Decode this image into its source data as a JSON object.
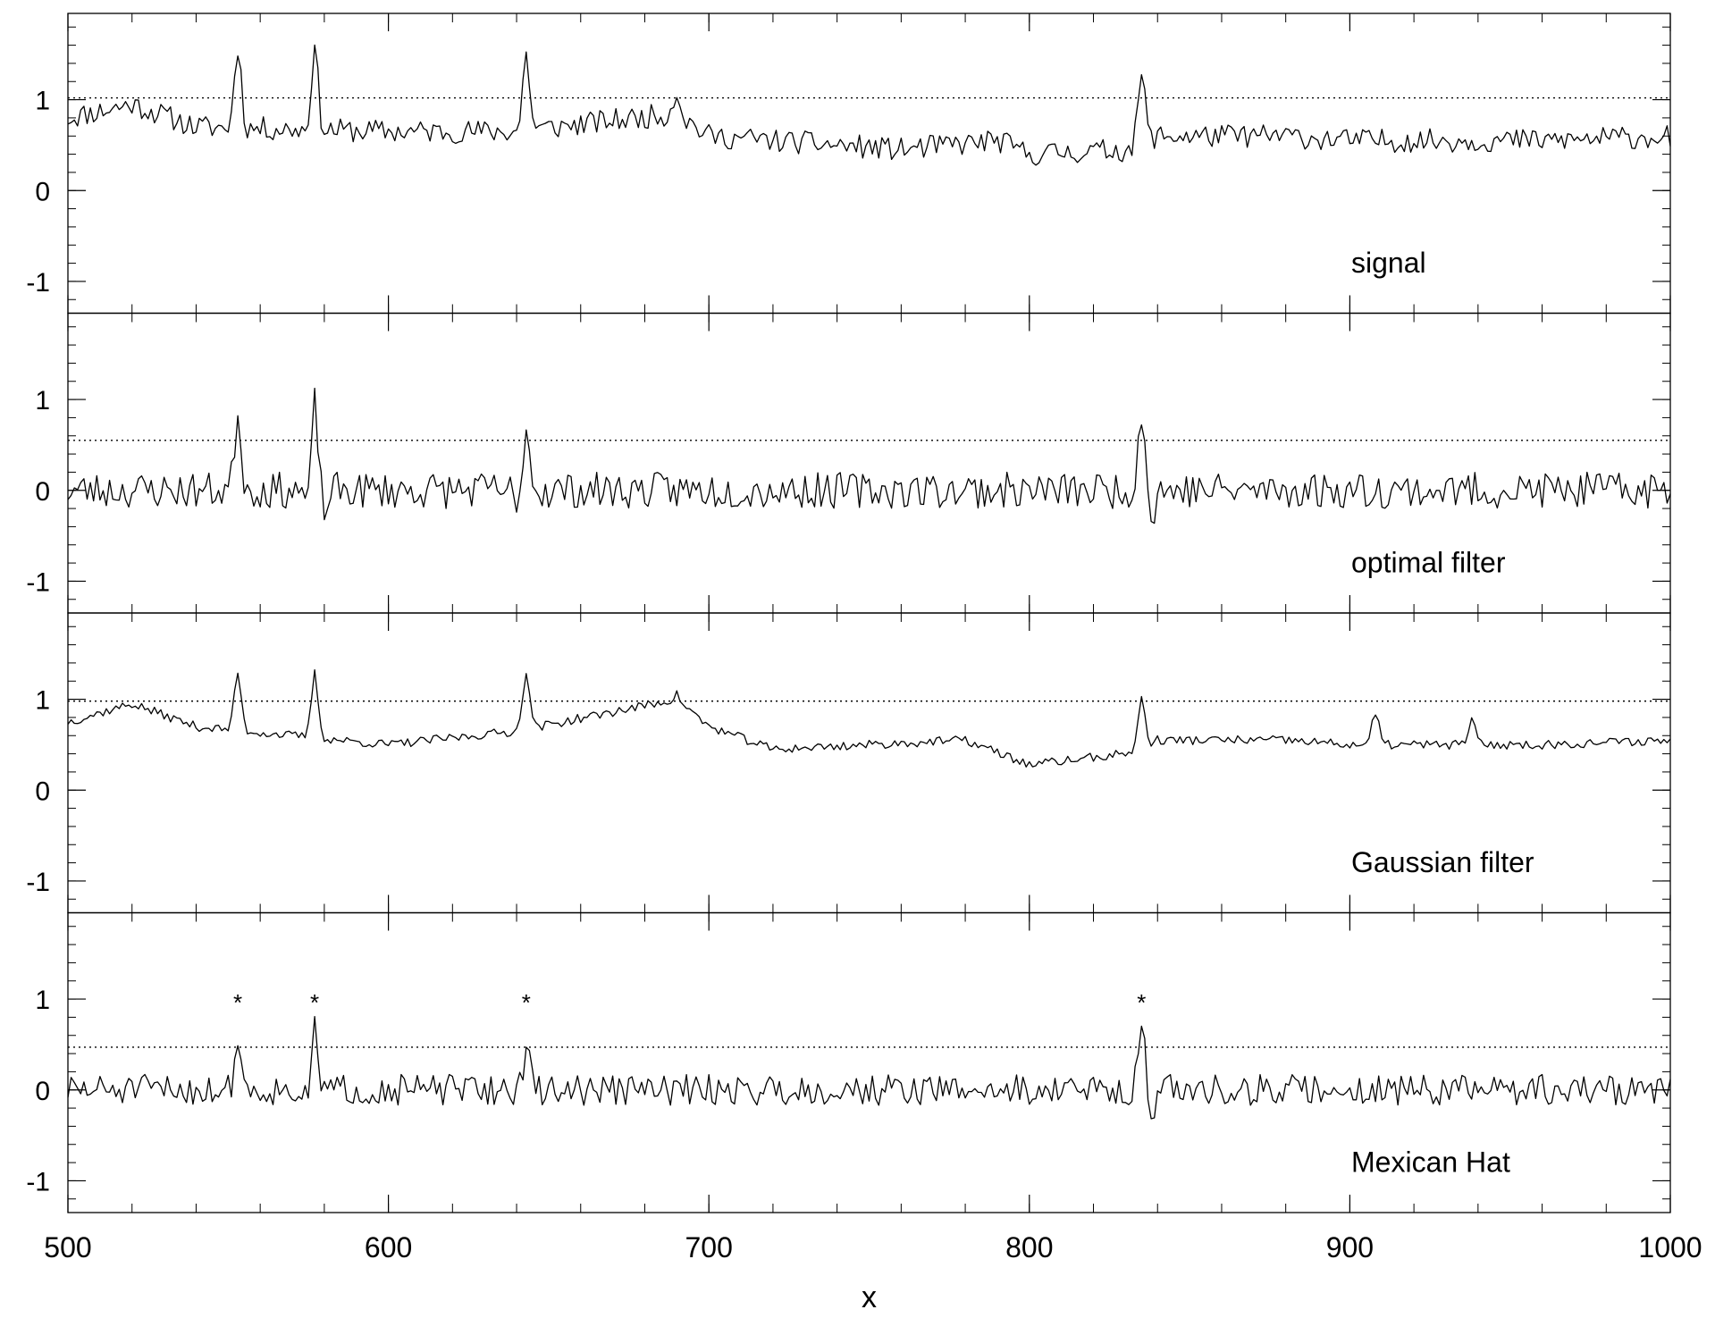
{
  "chart_data": {
    "type": "line",
    "x_axis": {
      "label": "x",
      "range": [
        500,
        1000
      ],
      "major_ticks": [
        500,
        600,
        700,
        800,
        900,
        1000
      ],
      "tick_labels": [
        "500",
        "600",
        "700",
        "800",
        "900",
        "1000"
      ],
      "minor_step": 20
    },
    "y_axis": {
      "range": [
        -1.35,
        1.95
      ],
      "major_ticks": [
        -1,
        0,
        1
      ],
      "tick_labels": [
        "-1",
        "0",
        "1"
      ],
      "minor_step": 0.2
    },
    "panels": [
      {
        "name": "signal",
        "threshold": 1.02,
        "baseline_segments": [
          [
            500,
            0.8
          ],
          [
            520,
            0.95
          ],
          [
            540,
            0.7
          ],
          [
            600,
            0.65
          ],
          [
            640,
            0.65
          ],
          [
            690,
            0.85
          ],
          [
            700,
            0.6
          ],
          [
            760,
            0.45
          ],
          [
            790,
            0.55
          ],
          [
            800,
            0.4
          ],
          [
            830,
            0.45
          ],
          [
            840,
            0.6
          ],
          [
            880,
            0.6
          ],
          [
            900,
            0.55
          ],
          [
            960,
            0.55
          ],
          [
            1000,
            0.6
          ]
        ],
        "peaks": [
          [
            553,
            1.6
          ],
          [
            577,
            1.55
          ],
          [
            643,
            1.5
          ],
          [
            690,
            1.1
          ],
          [
            835,
            1.3
          ]
        ],
        "noise": 0.13,
        "seed": 11
      },
      {
        "name": "optimal filter",
        "threshold": 0.55,
        "baseline_segments": [
          [
            500,
            0.0
          ],
          [
            1000,
            0.0
          ]
        ],
        "peaks": [
          [
            553,
            0.85
          ],
          [
            577,
            0.95
          ],
          [
            643,
            0.7
          ],
          [
            835,
            0.9
          ]
        ],
        "dips": [
          [
            575,
            -0.3
          ],
          [
            580,
            -0.3
          ],
          [
            640,
            -0.35
          ],
          [
            838,
            -0.4
          ]
        ],
        "noise": 0.2,
        "seed": 23
      },
      {
        "name": "Gaussian filter",
        "threshold": 0.98,
        "baseline_segments": [
          [
            500,
            0.75
          ],
          [
            520,
            0.95
          ],
          [
            540,
            0.7
          ],
          [
            600,
            0.5
          ],
          [
            640,
            0.65
          ],
          [
            690,
            1.0
          ],
          [
            700,
            0.7
          ],
          [
            720,
            0.45
          ],
          [
            780,
            0.55
          ],
          [
            800,
            0.28
          ],
          [
            830,
            0.4
          ],
          [
            840,
            0.55
          ],
          [
            880,
            0.55
          ],
          [
            900,
            0.5
          ],
          [
            960,
            0.5
          ],
          [
            1000,
            0.55
          ]
        ],
        "peaks": [
          [
            553,
            1.3
          ],
          [
            577,
            1.28
          ],
          [
            643,
            1.33
          ],
          [
            690,
            1.05
          ],
          [
            835,
            1.0
          ],
          [
            908,
            0.85
          ],
          [
            938,
            0.78
          ]
        ],
        "noise": 0.05,
        "seed": 37
      },
      {
        "name": "Mexican Hat",
        "threshold": 0.47,
        "baseline_segments": [
          [
            500,
            0.0
          ],
          [
            1000,
            0.0
          ]
        ],
        "peaks": [
          [
            553,
            0.55
          ],
          [
            577,
            0.68
          ],
          [
            643,
            0.42
          ],
          [
            835,
            0.68
          ]
        ],
        "dips": [
          [
            575,
            -0.3
          ],
          [
            838,
            -0.33
          ]
        ],
        "noise": 0.17,
        "seed": 51,
        "detections": [
          [
            553,
            1.0
          ],
          [
            577,
            1.0
          ],
          [
            643,
            1.0
          ],
          [
            835,
            1.0
          ]
        ]
      }
    ]
  }
}
